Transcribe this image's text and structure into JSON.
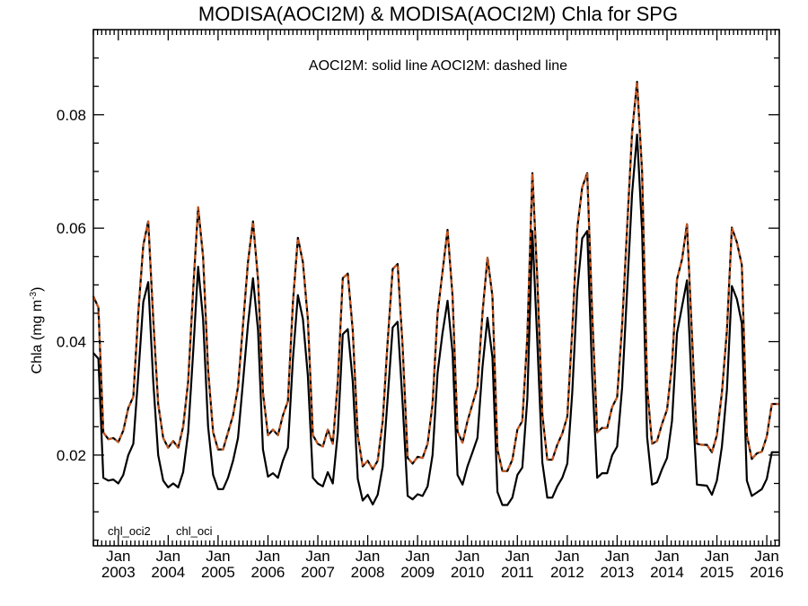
{
  "chart_data": {
    "type": "line",
    "title": "MODISA(AOCI2M) & MODISA(AOCI2M)  Chla for SPG",
    "subtitle": "AOCI2M: solid line   AOCI2M: dashed line",
    "xlabel": "",
    "ylabel_main": "Chla (mg m",
    "ylabel_sup": "-3",
    "ylabel_close": ")",
    "xlim": [
      2002.5,
      2016.25
    ],
    "ylim": [
      0.004,
      0.095
    ],
    "grid": false,
    "x_ticks": [
      {
        "x": 2003.0,
        "month": "Jan",
        "year": "2003"
      },
      {
        "x": 2004.0,
        "month": "Jan",
        "year": "2004"
      },
      {
        "x": 2005.0,
        "month": "Jan",
        "year": "2005"
      },
      {
        "x": 2006.0,
        "month": "Jan",
        "year": "2006"
      },
      {
        "x": 2007.0,
        "month": "Jan",
        "year": "2007"
      },
      {
        "x": 2008.0,
        "month": "Jan",
        "year": "2008"
      },
      {
        "x": 2009.0,
        "month": "Jan",
        "year": "2009"
      },
      {
        "x": 2010.0,
        "month": "Jan",
        "year": "2010"
      },
      {
        "x": 2011.0,
        "month": "Jan",
        "year": "2011"
      },
      {
        "x": 2012.0,
        "month": "Jan",
        "year": "2012"
      },
      {
        "x": 2013.0,
        "month": "Jan",
        "year": "2013"
      },
      {
        "x": 2014.0,
        "month": "Jan",
        "year": "2014"
      },
      {
        "x": 2015.0,
        "month": "Jan",
        "year": "2015"
      },
      {
        "x": 2016.0,
        "month": "Jan",
        "year": "2016"
      }
    ],
    "y_ticks": [
      {
        "value": 0.02,
        "label": "0.02"
      },
      {
        "value": 0.04,
        "label": "0.04"
      },
      {
        "value": 0.06,
        "label": "0.06"
      },
      {
        "value": 0.08,
        "label": "0.08"
      }
    ],
    "legend": [
      {
        "label": "chl_oci2",
        "color": "#c8561e"
      },
      {
        "label": "chl_oci",
        "color": "#000000"
      }
    ],
    "series": [
      {
        "name": "chl_oci",
        "color": "#000000",
        "style": "solid",
        "points": [
          [
            2002.5,
            0.038
          ],
          [
            2002.6,
            0.037
          ],
          [
            2002.7,
            0.016
          ],
          [
            2002.8,
            0.0155
          ],
          [
            2002.9,
            0.0157
          ],
          [
            2003.0,
            0.015
          ],
          [
            2003.1,
            0.0165
          ],
          [
            2003.2,
            0.02
          ],
          [
            2003.3,
            0.022
          ],
          [
            2003.4,
            0.034
          ],
          [
            2003.5,
            0.047
          ],
          [
            2003.6,
            0.0505
          ],
          [
            2003.7,
            0.033
          ],
          [
            2003.8,
            0.02
          ],
          [
            2003.9,
            0.0155
          ],
          [
            2004.0,
            0.0143
          ],
          [
            2004.1,
            0.015
          ],
          [
            2004.2,
            0.0143
          ],
          [
            2004.3,
            0.017
          ],
          [
            2004.4,
            0.024
          ],
          [
            2004.5,
            0.038
          ],
          [
            2004.6,
            0.0532
          ],
          [
            2004.7,
            0.044
          ],
          [
            2004.8,
            0.025
          ],
          [
            2004.9,
            0.0165
          ],
          [
            2005.0,
            0.014
          ],
          [
            2005.1,
            0.014
          ],
          [
            2005.2,
            0.016
          ],
          [
            2005.3,
            0.019
          ],
          [
            2005.4,
            0.023
          ],
          [
            2005.5,
            0.033
          ],
          [
            2005.6,
            0.043
          ],
          [
            2005.7,
            0.0512
          ],
          [
            2005.8,
            0.042
          ],
          [
            2005.9,
            0.021
          ],
          [
            2006.0,
            0.0162
          ],
          [
            2006.1,
            0.0168
          ],
          [
            2006.2,
            0.016
          ],
          [
            2006.3,
            0.019
          ],
          [
            2006.4,
            0.0213
          ],
          [
            2006.5,
            0.037
          ],
          [
            2006.6,
            0.0482
          ],
          [
            2006.7,
            0.044
          ],
          [
            2006.8,
            0.034
          ],
          [
            2006.9,
            0.016
          ],
          [
            2007.0,
            0.015
          ],
          [
            2007.1,
            0.0145
          ],
          [
            2007.2,
            0.017
          ],
          [
            2007.3,
            0.015
          ],
          [
            2007.4,
            0.024
          ],
          [
            2007.5,
            0.0413
          ],
          [
            2007.6,
            0.0422
          ],
          [
            2007.7,
            0.033
          ],
          [
            2007.8,
            0.0158
          ],
          [
            2007.9,
            0.012
          ],
          [
            2008.0,
            0.013
          ],
          [
            2008.1,
            0.0113
          ],
          [
            2008.2,
            0.013
          ],
          [
            2008.3,
            0.018
          ],
          [
            2008.4,
            0.03
          ],
          [
            2008.5,
            0.0425
          ],
          [
            2008.6,
            0.0435
          ],
          [
            2008.7,
            0.029
          ],
          [
            2008.8,
            0.0128
          ],
          [
            2008.9,
            0.0122
          ],
          [
            2009.0,
            0.0131
          ],
          [
            2009.1,
            0.0128
          ],
          [
            2009.2,
            0.0145
          ],
          [
            2009.3,
            0.02
          ],
          [
            2009.4,
            0.0345
          ],
          [
            2009.5,
            0.0415
          ],
          [
            2009.6,
            0.0472
          ],
          [
            2009.7,
            0.038
          ],
          [
            2009.8,
            0.0165
          ],
          [
            2009.9,
            0.0148
          ],
          [
            2010.0,
            0.018
          ],
          [
            2010.1,
            0.0205
          ],
          [
            2010.2,
            0.023
          ],
          [
            2010.3,
            0.0355
          ],
          [
            2010.4,
            0.0442
          ],
          [
            2010.5,
            0.0372
          ],
          [
            2010.6,
            0.0135
          ],
          [
            2010.7,
            0.0112
          ],
          [
            2010.8,
            0.0112
          ],
          [
            2010.9,
            0.0125
          ],
          [
            2011.0,
            0.0165
          ],
          [
            2011.1,
            0.0178
          ],
          [
            2011.2,
            0.03
          ],
          [
            2011.3,
            0.0595
          ],
          [
            2011.4,
            0.04
          ],
          [
            2011.5,
            0.0187
          ],
          [
            2011.6,
            0.0125
          ],
          [
            2011.7,
            0.0125
          ],
          [
            2011.8,
            0.0145
          ],
          [
            2011.9,
            0.016
          ],
          [
            2012.0,
            0.0185
          ],
          [
            2012.1,
            0.031
          ],
          [
            2012.2,
            0.049
          ],
          [
            2012.3,
            0.0582
          ],
          [
            2012.4,
            0.0595
          ],
          [
            2012.5,
            0.034
          ],
          [
            2012.6,
            0.016
          ],
          [
            2012.7,
            0.0168
          ],
          [
            2012.8,
            0.0168
          ],
          [
            2012.9,
            0.02
          ],
          [
            2013.0,
            0.0215
          ],
          [
            2013.1,
            0.032
          ],
          [
            2013.2,
            0.049
          ],
          [
            2013.3,
            0.0662
          ],
          [
            2013.4,
            0.0765
          ],
          [
            2013.5,
            0.0595
          ],
          [
            2013.6,
            0.0232
          ],
          [
            2013.7,
            0.0148
          ],
          [
            2013.8,
            0.0152
          ],
          [
            2013.9,
            0.0175
          ],
          [
            2014.0,
            0.0195
          ],
          [
            2014.1,
            0.026
          ],
          [
            2014.2,
            0.0415
          ],
          [
            2014.3,
            0.0462
          ],
          [
            2014.4,
            0.0508
          ],
          [
            2014.5,
            0.0308
          ],
          [
            2014.6,
            0.0148
          ],
          [
            2014.7,
            0.0147
          ],
          [
            2014.8,
            0.0146
          ],
          [
            2014.9,
            0.013
          ],
          [
            2015.0,
            0.0155
          ],
          [
            2015.1,
            0.0215
          ],
          [
            2015.2,
            0.0315
          ],
          [
            2015.3,
            0.0498
          ],
          [
            2015.4,
            0.0475
          ],
          [
            2015.5,
            0.0432
          ],
          [
            2015.6,
            0.0155
          ],
          [
            2015.7,
            0.0128
          ],
          [
            2015.8,
            0.0134
          ],
          [
            2015.9,
            0.014
          ],
          [
            2016.0,
            0.0158
          ],
          [
            2016.1,
            0.0205
          ],
          [
            2016.25,
            0.0205
          ]
        ]
      },
      {
        "name": "chl_oci2",
        "color": "#c8561e",
        "style": "dashed",
        "points": [
          [
            2002.5,
            0.048
          ],
          [
            2002.6,
            0.046
          ],
          [
            2002.7,
            0.024
          ],
          [
            2002.8,
            0.0228
          ],
          [
            2002.9,
            0.023
          ],
          [
            2003.0,
            0.0223
          ],
          [
            2003.1,
            0.0243
          ],
          [
            2003.2,
            0.0283
          ],
          [
            2003.3,
            0.0303
          ],
          [
            2003.4,
            0.045
          ],
          [
            2003.5,
            0.057
          ],
          [
            2003.6,
            0.0612
          ],
          [
            2003.7,
            0.044
          ],
          [
            2003.8,
            0.029
          ],
          [
            2003.9,
            0.023
          ],
          [
            2004.0,
            0.0213
          ],
          [
            2004.1,
            0.0225
          ],
          [
            2004.2,
            0.0213
          ],
          [
            2004.3,
            0.025
          ],
          [
            2004.4,
            0.033
          ],
          [
            2004.5,
            0.049
          ],
          [
            2004.6,
            0.0637
          ],
          [
            2004.7,
            0.055
          ],
          [
            2004.8,
            0.035
          ],
          [
            2004.9,
            0.024
          ],
          [
            2005.0,
            0.021
          ],
          [
            2005.1,
            0.021
          ],
          [
            2005.2,
            0.024
          ],
          [
            2005.3,
            0.027
          ],
          [
            2005.4,
            0.032
          ],
          [
            2005.5,
            0.043
          ],
          [
            2005.6,
            0.054
          ],
          [
            2005.7,
            0.0612
          ],
          [
            2005.8,
            0.051
          ],
          [
            2005.9,
            0.031
          ],
          [
            2006.0,
            0.0235
          ],
          [
            2006.1,
            0.0245
          ],
          [
            2006.2,
            0.0235
          ],
          [
            2006.3,
            0.027
          ],
          [
            2006.4,
            0.0295
          ],
          [
            2006.5,
            0.047
          ],
          [
            2006.6,
            0.0583
          ],
          [
            2006.7,
            0.054
          ],
          [
            2006.8,
            0.044
          ],
          [
            2006.9,
            0.0235
          ],
          [
            2007.0,
            0.022
          ],
          [
            2007.1,
            0.0215
          ],
          [
            2007.2,
            0.0245
          ],
          [
            2007.3,
            0.022
          ],
          [
            2007.4,
            0.033
          ],
          [
            2007.5,
            0.0512
          ],
          [
            2007.6,
            0.052
          ],
          [
            2007.7,
            0.042
          ],
          [
            2007.8,
            0.0235
          ],
          [
            2007.9,
            0.018
          ],
          [
            2008.0,
            0.019
          ],
          [
            2008.1,
            0.0175
          ],
          [
            2008.2,
            0.019
          ],
          [
            2008.3,
            0.026
          ],
          [
            2008.4,
            0.04
          ],
          [
            2008.5,
            0.0528
          ],
          [
            2008.6,
            0.0537
          ],
          [
            2008.7,
            0.039
          ],
          [
            2008.8,
            0.0195
          ],
          [
            2008.9,
            0.0185
          ],
          [
            2009.0,
            0.0197
          ],
          [
            2009.1,
            0.0195
          ],
          [
            2009.2,
            0.022
          ],
          [
            2009.3,
            0.029
          ],
          [
            2009.4,
            0.045
          ],
          [
            2009.5,
            0.0523
          ],
          [
            2009.6,
            0.0597
          ],
          [
            2009.7,
            0.048
          ],
          [
            2009.8,
            0.0242
          ],
          [
            2009.9,
            0.0222
          ],
          [
            2010.0,
            0.026
          ],
          [
            2010.1,
            0.029
          ],
          [
            2010.2,
            0.032
          ],
          [
            2010.3,
            0.045
          ],
          [
            2010.4,
            0.0548
          ],
          [
            2010.5,
            0.048
          ],
          [
            2010.6,
            0.021
          ],
          [
            2010.7,
            0.0172
          ],
          [
            2010.8,
            0.0172
          ],
          [
            2010.9,
            0.0192
          ],
          [
            2011.0,
            0.0245
          ],
          [
            2011.1,
            0.026
          ],
          [
            2011.2,
            0.041
          ],
          [
            2011.3,
            0.0697
          ],
          [
            2011.4,
            0.051
          ],
          [
            2011.5,
            0.0272
          ],
          [
            2011.6,
            0.0192
          ],
          [
            2011.7,
            0.0192
          ],
          [
            2011.8,
            0.0218
          ],
          [
            2011.9,
            0.0238
          ],
          [
            2012.0,
            0.0268
          ],
          [
            2012.1,
            0.042
          ],
          [
            2012.2,
            0.06
          ],
          [
            2012.3,
            0.0672
          ],
          [
            2012.4,
            0.0697
          ],
          [
            2012.5,
            0.045
          ],
          [
            2012.6,
            0.024
          ],
          [
            2012.7,
            0.0248
          ],
          [
            2012.8,
            0.0248
          ],
          [
            2012.9,
            0.0285
          ],
          [
            2013.0,
            0.0302
          ],
          [
            2013.1,
            0.043
          ],
          [
            2013.2,
            0.06
          ],
          [
            2013.3,
            0.077
          ],
          [
            2013.4,
            0.0858
          ],
          [
            2013.5,
            0.07
          ],
          [
            2013.6,
            0.032
          ],
          [
            2013.7,
            0.022
          ],
          [
            2013.8,
            0.0225
          ],
          [
            2013.9,
            0.0255
          ],
          [
            2014.0,
            0.028
          ],
          [
            2014.1,
            0.036
          ],
          [
            2014.2,
            0.051
          ],
          [
            2014.3,
            0.0545
          ],
          [
            2014.4,
            0.0607
          ],
          [
            2014.5,
            0.041
          ],
          [
            2014.6,
            0.022
          ],
          [
            2014.7,
            0.0218
          ],
          [
            2014.8,
            0.0218
          ],
          [
            2014.9,
            0.0205
          ],
          [
            2015.0,
            0.0235
          ],
          [
            2015.1,
            0.031
          ],
          [
            2015.2,
            0.042
          ],
          [
            2015.3,
            0.0601
          ],
          [
            2015.4,
            0.0575
          ],
          [
            2015.5,
            0.0535
          ],
          [
            2015.6,
            0.0235
          ],
          [
            2015.7,
            0.0193
          ],
          [
            2015.8,
            0.0203
          ],
          [
            2015.9,
            0.0206
          ],
          [
            2016.0,
            0.0233
          ],
          [
            2016.1,
            0.029
          ],
          [
            2016.25,
            0.029
          ]
        ]
      }
    ]
  }
}
